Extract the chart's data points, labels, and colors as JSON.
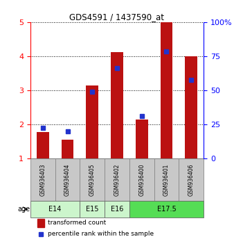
{
  "title": "GDS4591 / 1437590_at",
  "samples": [
    "GSM936403",
    "GSM936404",
    "GSM936405",
    "GSM936402",
    "GSM936400",
    "GSM936401",
    "GSM936406"
  ],
  "transformed_count": [
    1.78,
    1.55,
    3.15,
    4.12,
    2.15,
    5.0,
    4.0
  ],
  "percentile_rank_y": [
    1.9,
    1.8,
    2.95,
    3.65,
    2.25,
    4.15,
    3.3
  ],
  "ylim_left": [
    1,
    5
  ],
  "ylim_right": [
    0,
    100
  ],
  "yticks_left": [
    1,
    2,
    3,
    4,
    5
  ],
  "yticks_right": [
    0,
    25,
    50,
    75,
    100
  ],
  "yticklabels_right": [
    "0",
    "25",
    "50",
    "75",
    "100%"
  ],
  "bar_color": "#bb1111",
  "dot_color": "#2233cc",
  "bar_width": 0.5,
  "legend_bar_label": "transformed count",
  "legend_dot_label": "percentile rank within the sample",
  "age_label": "age",
  "sample_bg": "#c8c8c8",
  "age_e14_color": "#ccf5cc",
  "age_e175_color": "#55dd55",
  "age_groups": [
    {
      "label": "E14",
      "cols": [
        0,
        1
      ]
    },
    {
      "label": "E15",
      "cols": [
        2
      ]
    },
    {
      "label": "E16",
      "cols": [
        3
      ]
    },
    {
      "label": "E17.5",
      "cols": [
        4,
        5,
        6
      ]
    }
  ]
}
